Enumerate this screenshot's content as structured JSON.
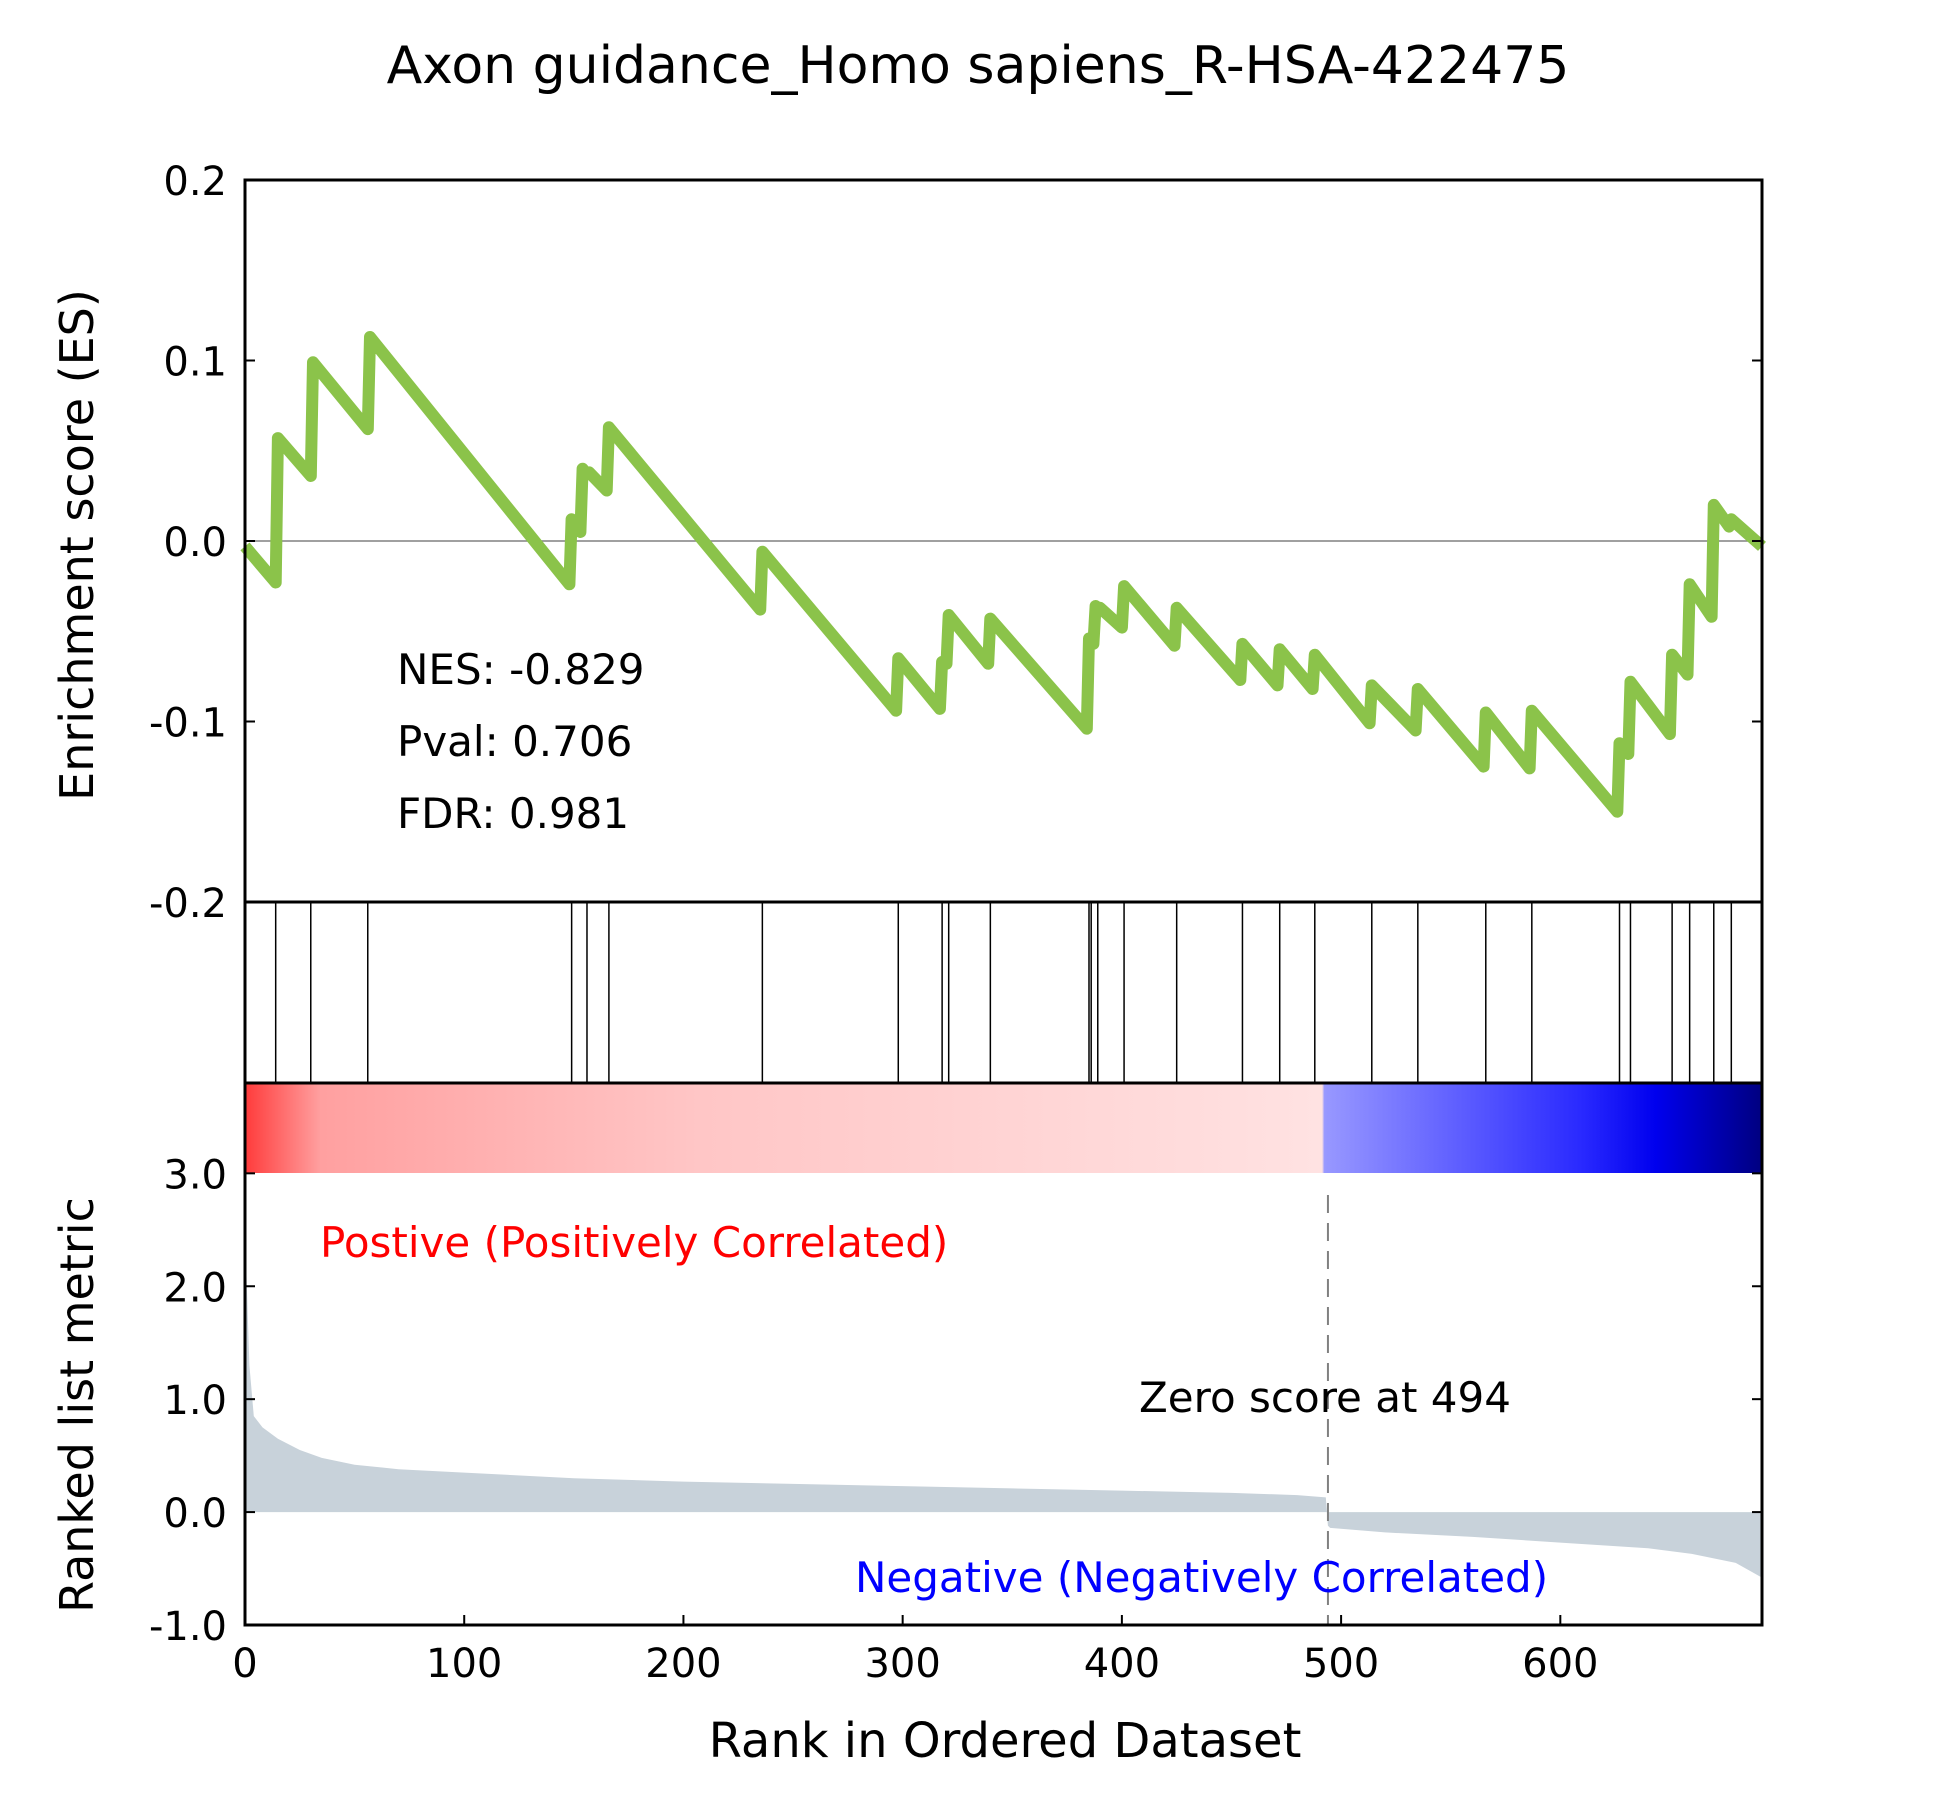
{
  "chart_data": {
    "type": "line",
    "title": "Axon guidance_Homo sapiens_R-HSA-422475",
    "xlabel": "Rank in Ordered Dataset",
    "es_panel": {
      "ylabel": "Enrichment score (ES)",
      "ylim": [
        -0.2,
        0.2
      ],
      "yticks": [
        "0.2",
        "0.1",
        "0.0",
        "-0.1",
        "-0.2"
      ],
      "ytick_values": [
        0.2,
        0.1,
        0.0,
        -0.1,
        -0.2
      ],
      "line_color": "#8bc34a",
      "series": [
        {
          "x": [
            0,
            14,
            15,
            30,
            31,
            56,
            57,
            148,
            149,
            153,
            154,
            156,
            157,
            165,
            166,
            235,
            236,
            297,
            298,
            317,
            318,
            320,
            321,
            339,
            340,
            384,
            385,
            387,
            388,
            389,
            390,
            400,
            401,
            424,
            425,
            454,
            455,
            471,
            472,
            487,
            488,
            513,
            514,
            534,
            535,
            565,
            566,
            586,
            587,
            626,
            627,
            631,
            632,
            650,
            651,
            658,
            659,
            669,
            670,
            677,
            678,
            692
          ],
          "y": [
            -0.003,
            -0.023,
            0.057,
            0.036,
            0.099,
            0.062,
            0.113,
            -0.024,
            0.012,
            0.005,
            0.04,
            0.037,
            0.038,
            0.028,
            0.063,
            -0.038,
            -0.006,
            -0.094,
            -0.065,
            -0.093,
            -0.067,
            -0.068,
            -0.041,
            -0.068,
            -0.043,
            -0.104,
            -0.054,
            -0.057,
            -0.036,
            -0.037,
            -0.037,
            -0.048,
            -0.025,
            -0.058,
            -0.037,
            -0.077,
            -0.057,
            -0.08,
            -0.06,
            -0.082,
            -0.063,
            -0.101,
            -0.08,
            -0.105,
            -0.082,
            -0.125,
            -0.095,
            -0.126,
            -0.094,
            -0.15,
            -0.112,
            -0.118,
            -0.078,
            -0.107,
            -0.063,
            -0.074,
            -0.024,
            -0.042,
            0.02,
            0.008,
            0.012,
            -0.003
          ]
        }
      ],
      "zero_line": 0.0
    },
    "hits": [
      14,
      30,
      56,
      149,
      156,
      166,
      236,
      298,
      318,
      321,
      340,
      385,
      386,
      389,
      401,
      425,
      455,
      472,
      488,
      514,
      535,
      566,
      587,
      627,
      632,
      651,
      659,
      670,
      678
    ],
    "stats": {
      "nes": "NES: -0.829",
      "pval": "Pval: 0.706",
      "fdr": "FDR: 0.981"
    },
    "rank_panel": {
      "ylabel": "Ranked list metric",
      "ylim": [
        -1.0,
        3.8
      ],
      "yticks": [
        "3.0",
        "2.0",
        "1.0",
        "0.0",
        "-1.0"
      ],
      "ytick_values": [
        3.0,
        2.0,
        1.0,
        0.0,
        -1.0
      ],
      "fill_color": "#c8d2da",
      "metric_x": [
        0,
        2,
        4,
        8,
        15,
        25,
        35,
        50,
        70,
        100,
        150,
        200,
        250,
        300,
        350,
        400,
        450,
        480,
        493,
        494,
        495,
        520,
        560,
        600,
        640,
        660,
        680,
        692
      ],
      "metric_y": [
        2.5,
        1.3,
        0.85,
        0.75,
        0.65,
        0.55,
        0.48,
        0.42,
        0.38,
        0.35,
        0.3,
        0.27,
        0.25,
        0.23,
        0.21,
        0.19,
        0.17,
        0.15,
        0.13,
        -0.12,
        -0.14,
        -0.18,
        -0.22,
        -0.27,
        -0.32,
        -0.37,
        -0.45,
        -0.58
      ],
      "zero_score_rank": 494,
      "zero_score_label": "Zero score at 494",
      "positive_label": "Postive (Positively Correlated)",
      "positive_color": "#ff0000",
      "negative_label": "Negative (Negatively Correlated)",
      "negative_color": "#0000ff"
    },
    "xlim": [
      0,
      692
    ],
    "xticks": [
      "0",
      "100",
      "200",
      "300",
      "400",
      "500",
      "600"
    ],
    "xtick_values": [
      0,
      100,
      200,
      300,
      400,
      500,
      600
    ],
    "grid": false
  }
}
